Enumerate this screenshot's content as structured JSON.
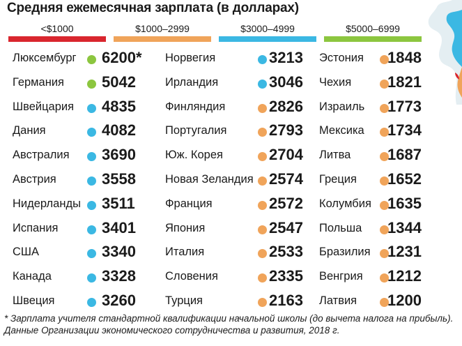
{
  "chart_data": {
    "type": "table",
    "title": "Средняя ежемесячная зарплата (в долларах)",
    "legend": [
      {
        "label": "<$1000",
        "color": "#d9262e"
      },
      {
        "label": "$1000–2999",
        "color": "#f0a45a"
      },
      {
        "label": "$3000–4999",
        "color": "#3bb8e3"
      },
      {
        "label": "$5000–6999",
        "color": "#8cc63f"
      }
    ],
    "columns": [
      [
        {
          "country": "Люксембург",
          "value": "6200*",
          "color": "#8cc63f"
        },
        {
          "country": "Германия",
          "value": "5042",
          "color": "#8cc63f"
        },
        {
          "country": "Швейцария",
          "value": "4835",
          "color": "#3bb8e3"
        },
        {
          "country": "Дания",
          "value": "4082",
          "color": "#3bb8e3"
        },
        {
          "country": "Австралия",
          "value": "3690",
          "color": "#3bb8e3"
        },
        {
          "country": "Австрия",
          "value": "3558",
          "color": "#3bb8e3"
        },
        {
          "country": "Нидерланды",
          "value": "3511",
          "color": "#3bb8e3"
        },
        {
          "country": "Испания",
          "value": "3401",
          "color": "#3bb8e3"
        },
        {
          "country": "США",
          "value": "3340",
          "color": "#3bb8e3"
        },
        {
          "country": "Канада",
          "value": "3328",
          "color": "#3bb8e3"
        },
        {
          "country": "Швеция",
          "value": "3260",
          "color": "#3bb8e3"
        }
      ],
      [
        {
          "country": "Норвегия",
          "value": "3213",
          "color": "#3bb8e3"
        },
        {
          "country": "Ирландия",
          "value": "3046",
          "color": "#3bb8e3"
        },
        {
          "country": "Финляндия",
          "value": "2826",
          "color": "#f0a45a"
        },
        {
          "country": "Португалия",
          "value": "2793",
          "color": "#f0a45a"
        },
        {
          "country": "Юж. Корея",
          "value": "2704",
          "color": "#f0a45a"
        },
        {
          "country": "Новая Зеландия",
          "value": "2574",
          "color": "#f0a45a"
        },
        {
          "country": "Франция",
          "value": "2572",
          "color": "#f0a45a"
        },
        {
          "country": "Япония",
          "value": "2547",
          "color": "#f0a45a"
        },
        {
          "country": "Италия",
          "value": "2533",
          "color": "#f0a45a"
        },
        {
          "country": "Словения",
          "value": "2335",
          "color": "#f0a45a"
        },
        {
          "country": "Турция",
          "value": "2163",
          "color": "#f0a45a"
        }
      ],
      [
        {
          "country": "Эстония",
          "value": "1848",
          "color": "#f0a45a"
        },
        {
          "country": "Чехия",
          "value": "1821",
          "color": "#f0a45a"
        },
        {
          "country": "Израиль",
          "value": "1773",
          "color": "#f0a45a"
        },
        {
          "country": "Мексика",
          "value": "1734",
          "color": "#f0a45a"
        },
        {
          "country": "Литва",
          "value": "1687",
          "color": "#f0a45a"
        },
        {
          "country": "Греция",
          "value": "1652",
          "color": "#f0a45a"
        },
        {
          "country": "Колумбия",
          "value": "1635",
          "color": "#f0a45a"
        },
        {
          "country": "Польша",
          "value": "1344",
          "color": "#f0a45a"
        },
        {
          "country": "Бразилия",
          "value": "1231",
          "color": "#f0a45a"
        },
        {
          "country": "Венгрия",
          "value": "1212",
          "color": "#f0a45a"
        },
        {
          "country": "Латвия",
          "value": "1200",
          "color": "#f0a45a"
        }
      ]
    ],
    "footnote": [
      "* Зарплата учителя стандартной квалификации начальной школы (до вычета налога на прибыль).",
      "Данные Организации экономического сотрудничества и развития, 2018 г."
    ]
  }
}
